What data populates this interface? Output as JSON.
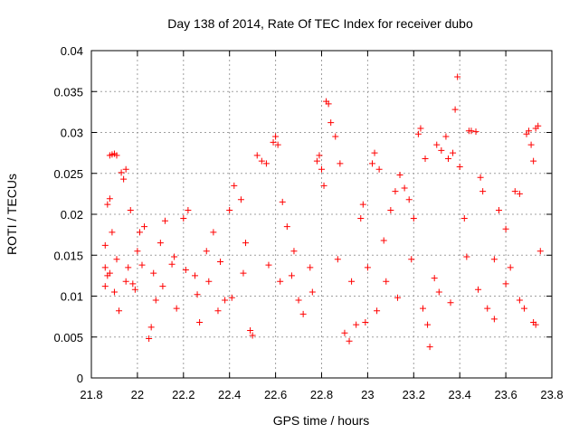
{
  "chart_data": {
    "type": "scatter",
    "title": "Day 138 of 2014, Rate Of TEC Index for receiver dubo",
    "xlabel": "GPS time / hours",
    "ylabel": "ROTI / TECUs",
    "xlim": [
      21.8,
      23.8
    ],
    "ylim": [
      0,
      0.04
    ],
    "grid": true,
    "marker": "+",
    "x_ticks": [
      "21.8",
      "22",
      "22.2",
      "22.4",
      "22.6",
      "22.8",
      "23",
      "23.2",
      "23.4",
      "23.6",
      "23.8"
    ],
    "y_ticks": [
      "0",
      "0.005",
      "0.01",
      "0.015",
      "0.02",
      "0.025",
      "0.03",
      "0.035",
      "0.04"
    ],
    "series": [
      {
        "name": "ROTI",
        "color": "#ff0000",
        "points": [
          [
            21.86,
            0.0135
          ],
          [
            21.87,
            0.0125
          ],
          [
            21.88,
            0.0272
          ],
          [
            21.89,
            0.0273
          ],
          [
            21.9,
            0.0274
          ],
          [
            21.91,
            0.0272
          ],
          [
            21.87,
            0.0212
          ],
          [
            21.88,
            0.0219
          ],
          [
            21.86,
            0.0162
          ],
          [
            21.89,
            0.0178
          ],
          [
            21.9,
            0.0105
          ],
          [
            21.92,
            0.0082
          ],
          [
            21.93,
            0.0251
          ],
          [
            21.95,
            0.0255
          ],
          [
            21.94,
            0.0243
          ],
          [
            21.97,
            0.0205
          ],
          [
            21.96,
            0.0135
          ],
          [
            21.98,
            0.0115
          ],
          [
            22.0,
            0.0155
          ],
          [
            22.01,
            0.0178
          ],
          [
            22.03,
            0.0185
          ],
          [
            22.05,
            0.0048
          ],
          [
            22.06,
            0.0062
          ],
          [
            22.08,
            0.0095
          ],
          [
            22.1,
            0.0165
          ],
          [
            22.12,
            0.0192
          ],
          [
            22.15,
            0.0139
          ],
          [
            22.17,
            0.0085
          ],
          [
            22.2,
            0.0195
          ],
          [
            22.22,
            0.0205
          ],
          [
            22.25,
            0.0125
          ],
          [
            22.27,
            0.0068
          ],
          [
            22.3,
            0.0155
          ],
          [
            22.33,
            0.0178
          ],
          [
            22.35,
            0.0082
          ],
          [
            22.38,
            0.0095
          ],
          [
            22.4,
            0.0205
          ],
          [
            22.42,
            0.0235
          ],
          [
            22.45,
            0.0218
          ],
          [
            22.47,
            0.0165
          ],
          [
            22.49,
            0.0058
          ],
          [
            22.5,
            0.0052
          ],
          [
            22.52,
            0.0272
          ],
          [
            22.54,
            0.0265
          ],
          [
            22.56,
            0.0262
          ],
          [
            22.59,
            0.0288
          ],
          [
            22.6,
            0.0295
          ],
          [
            22.61,
            0.0285
          ],
          [
            22.63,
            0.0215
          ],
          [
            22.65,
            0.0185
          ],
          [
            22.67,
            0.0125
          ],
          [
            22.7,
            0.0095
          ],
          [
            22.72,
            0.0078
          ],
          [
            22.75,
            0.0135
          ],
          [
            22.78,
            0.0265
          ],
          [
            22.79,
            0.0272
          ],
          [
            22.8,
            0.0255
          ],
          [
            22.81,
            0.0235
          ],
          [
            22.82,
            0.0338
          ],
          [
            22.83,
            0.0335
          ],
          [
            22.84,
            0.0312
          ],
          [
            22.86,
            0.0295
          ],
          [
            22.88,
            0.0262
          ],
          [
            22.9,
            0.0055
          ],
          [
            22.92,
            0.0045
          ],
          [
            22.95,
            0.0065
          ],
          [
            22.97,
            0.0195
          ],
          [
            22.98,
            0.0212
          ],
          [
            23.0,
            0.0135
          ],
          [
            23.02,
            0.0262
          ],
          [
            23.03,
            0.0275
          ],
          [
            23.05,
            0.0255
          ],
          [
            23.07,
            0.0168
          ],
          [
            23.1,
            0.0205
          ],
          [
            23.12,
            0.0228
          ],
          [
            23.14,
            0.0248
          ],
          [
            23.16,
            0.0232
          ],
          [
            23.18,
            0.0218
          ],
          [
            23.2,
            0.0195
          ],
          [
            23.22,
            0.0298
          ],
          [
            23.23,
            0.0305
          ],
          [
            23.25,
            0.0268
          ],
          [
            23.26,
            0.0065
          ],
          [
            23.27,
            0.0038
          ],
          [
            23.29,
            0.0122
          ],
          [
            23.3,
            0.0285
          ],
          [
            23.32,
            0.0278
          ],
          [
            23.34,
            0.0295
          ],
          [
            23.35,
            0.0268
          ],
          [
            23.37,
            0.0275
          ],
          [
            23.38,
            0.0328
          ],
          [
            23.39,
            0.0368
          ],
          [
            23.4,
            0.0258
          ],
          [
            23.42,
            0.0195
          ],
          [
            23.44,
            0.0302
          ],
          [
            23.45,
            0.0302
          ],
          [
            23.47,
            0.0301
          ],
          [
            23.49,
            0.0245
          ],
          [
            23.5,
            0.0228
          ],
          [
            23.52,
            0.0085
          ],
          [
            23.55,
            0.0072
          ],
          [
            23.57,
            0.0205
          ],
          [
            23.6,
            0.0182
          ],
          [
            23.62,
            0.0135
          ],
          [
            23.64,
            0.0228
          ],
          [
            23.66,
            0.0225
          ],
          [
            23.68,
            0.0085
          ],
          [
            23.69,
            0.0298
          ],
          [
            23.7,
            0.0302
          ],
          [
            23.71,
            0.0285
          ],
          [
            23.72,
            0.0265
          ],
          [
            23.73,
            0.0305
          ],
          [
            23.74,
            0.0308
          ],
          [
            23.75,
            0.0155
          ],
          [
            23.73,
            0.0065
          ],
          [
            23.72,
            0.0068
          ],
          [
            23.66,
            0.0095
          ],
          [
            23.6,
            0.0115
          ],
          [
            23.55,
            0.0145
          ],
          [
            23.48,
            0.0108
          ],
          [
            23.43,
            0.0148
          ],
          [
            23.36,
            0.0092
          ],
          [
            23.31,
            0.0105
          ],
          [
            23.24,
            0.0085
          ],
          [
            23.19,
            0.0145
          ],
          [
            23.13,
            0.0098
          ],
          [
            23.08,
            0.0118
          ],
          [
            23.04,
            0.0082
          ],
          [
            22.99,
            0.0068
          ],
          [
            22.93,
            0.0118
          ],
          [
            22.87,
            0.0145
          ],
          [
            22.76,
            0.0105
          ],
          [
            22.68,
            0.0155
          ],
          [
            22.62,
            0.0118
          ],
          [
            22.57,
            0.0138
          ],
          [
            22.46,
            0.0128
          ],
          [
            22.41,
            0.0098
          ],
          [
            22.36,
            0.0142
          ],
          [
            22.31,
            0.0118
          ],
          [
            22.26,
            0.0102
          ],
          [
            22.21,
            0.0132
          ],
          [
            22.16,
            0.0148
          ],
          [
            22.11,
            0.0112
          ],
          [
            22.07,
            0.0128
          ],
          [
            22.02,
            0.0138
          ],
          [
            21.99,
            0.0108
          ],
          [
            21.95,
            0.0118
          ],
          [
            21.91,
            0.0145
          ],
          [
            21.88,
            0.0128
          ],
          [
            21.86,
            0.0112
          ]
        ]
      }
    ]
  }
}
